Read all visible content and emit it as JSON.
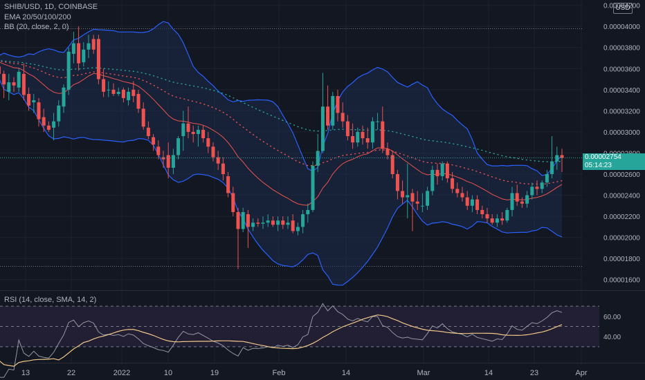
{
  "header": {
    "symbol_line": "SHIB/USD, 1D, COINBASE",
    "ema_line": "EMA 20/50/100/200",
    "bb_line": "BB (20, close, 2, 0)",
    "currency_badge": "USD"
  },
  "last_price": {
    "value": "0.00002754",
    "countdown": "05:14:23"
  },
  "rsi": {
    "label": "RSI (14, close, SMA, 14, 2)",
    "axis_labels": [
      "60.00",
      "40.00"
    ],
    "levels": [
      70,
      50,
      30
    ]
  },
  "colors": {
    "background": "#131722",
    "up": "#26a69a",
    "down": "#ef5350",
    "bb_band": "#2962ff",
    "bb_fill": "#1c2a48",
    "ema_fast": "#ef5350",
    "ema_slow": "#26a69a",
    "rsi_line": "#9598a1",
    "rsi_sma": "#f0c987",
    "rsi_zone": "#221f35"
  },
  "chart_data": {
    "type": "candlestick",
    "title": "SHIB/USD, 1D, COINBASE",
    "price_axis_labels": [
      "0.00004200",
      "0.00004000",
      "0.00003800",
      "0.00003600",
      "0.00003400",
      "0.00003200",
      "0.00003000",
      "0.00002800",
      "0.00002600",
      "0.00002400",
      "0.00002200",
      "0.00002000",
      "0.00001800",
      "0.00001600"
    ],
    "price_axis_values": [
      4.2e-05,
      4e-05,
      3.8e-05,
      3.6e-05,
      3.4e-05,
      3.2e-05,
      3e-05,
      2.8e-05,
      2.6e-05,
      2.4e-05,
      2.2e-05,
      2e-05,
      1.8e-05,
      1.6e-05
    ],
    "time_axis_labels": [
      "13",
      "22",
      "2022",
      "10",
      "19",
      "Feb",
      "14",
      "Mar",
      "14",
      "23",
      "Apr"
    ],
    "ylim": [
      1.5e-05,
      4.25e-05
    ],
    "candles": [
      [
        3.63e-05,
        3.7e-05,
        3.6e-05,
        3.68e-05
      ],
      [
        3.65e-05,
        3.7e-05,
        3.55e-05,
        3.62e-05
      ],
      [
        3.62e-05,
        3.64e-05,
        3.52e-05,
        3.55e-05
      ],
      [
        3.55e-05,
        3.58e-05,
        3.32e-05,
        3.45e-05
      ],
      [
        3.38e-05,
        3.55e-05,
        3.3e-05,
        3.47e-05
      ],
      [
        3.47e-05,
        3.52e-05,
        3.38e-05,
        3.44e-05
      ],
      [
        3.42e-05,
        3.6e-05,
        3.38e-05,
        3.57e-05
      ],
      [
        3.55e-05,
        3.65e-05,
        3.3e-05,
        3.35e-05
      ],
      [
        3.36e-05,
        3.42e-05,
        3.2e-05,
        3.25e-05
      ],
      [
        3.28e-05,
        3.36e-05,
        3.18e-05,
        3.3e-05
      ],
      [
        3.28e-05,
        3.32e-05,
        3.05e-05,
        3.12e-05
      ],
      [
        3.14e-05,
        3.22e-05,
        3e-05,
        3.06e-05
      ],
      [
        3.06e-05,
        3.1e-05,
        3e-05,
        3.02e-05
      ],
      [
        3.04e-05,
        3.18e-05,
        2.92e-05,
        3.1e-05
      ],
      [
        3.1e-05,
        3.3e-05,
        3.05e-05,
        3.25e-05
      ],
      [
        3.24e-05,
        3.45e-05,
        3.18e-05,
        3.42e-05
      ],
      [
        3.4e-05,
        3.8e-05,
        3.35e-05,
        3.76e-05
      ],
      [
        3.74e-05,
        3.95e-05,
        3.65e-05,
        3.84e-05
      ],
      [
        3.84e-05,
        4e-05,
        3.58e-05,
        3.65e-05
      ],
      [
        3.66e-05,
        3.85e-05,
        3.62e-05,
        3.78e-05
      ],
      [
        3.78e-05,
        3.92e-05,
        3.7e-05,
        3.84e-05
      ],
      [
        3.88e-05,
        3.92e-05,
        3.74e-05,
        3.78e-05
      ],
      [
        3.88e-05,
        3.92e-05,
        3.45e-05,
        3.5e-05
      ],
      [
        3.5e-05,
        3.6e-05,
        3.33e-05,
        3.38e-05
      ],
      [
        3.4e-05,
        3.48e-05,
        3.33e-05,
        3.4e-05
      ],
      [
        3.4e-05,
        3.46e-05,
        3.34e-05,
        3.36e-05
      ],
      [
        3.36e-05,
        3.42e-05,
        3.34e-05,
        3.38e-05
      ],
      [
        3.4e-05,
        3.42e-05,
        3.28e-05,
        3.32e-05
      ],
      [
        3.3e-05,
        3.42e-05,
        3.25e-05,
        3.38e-05
      ],
      [
        3.4e-05,
        3.48e-05,
        3.28e-05,
        3.34e-05
      ],
      [
        3.36e-05,
        3.4e-05,
        3.18e-05,
        3.22e-05
      ],
      [
        3.22e-05,
        3.28e-05,
        3.02e-05,
        3.05e-05
      ],
      [
        3.04e-05,
        3.1e-05,
        2.93e-05,
        2.96e-05
      ],
      [
        2.95e-05,
        2.98e-05,
        2.82e-05,
        2.88e-05
      ],
      [
        2.86e-05,
        2.92e-05,
        2.74e-05,
        2.78e-05
      ],
      [
        2.76e-05,
        2.82e-05,
        2.66e-05,
        2.74e-05
      ],
      [
        2.78e-05,
        2.9e-05,
        2.56e-05,
        2.66e-05
      ],
      [
        2.66e-05,
        2.84e-05,
        2.6e-05,
        2.78e-05
      ],
      [
        2.78e-05,
        2.96e-05,
        2.74e-05,
        2.94e-05
      ],
      [
        2.96e-05,
        3.2e-05,
        2.82e-05,
        3.08e-05
      ],
      [
        3.08e-05,
        3.24e-05,
        2.94e-05,
        3e-05
      ],
      [
        3e-05,
        3.06e-05,
        2.9e-05,
        2.98e-05
      ],
      [
        2.98e-05,
        3.06e-05,
        2.86e-05,
        3.02e-05
      ],
      [
        3.02e-05,
        3.06e-05,
        2.9e-05,
        2.94e-05
      ],
      [
        2.94e-05,
        3e-05,
        2.8e-05,
        2.86e-05
      ],
      [
        2.86e-05,
        2.9e-05,
        2.72e-05,
        2.76e-05
      ],
      [
        2.76e-05,
        2.82e-05,
        2.64e-05,
        2.7e-05
      ],
      [
        2.7e-05,
        2.76e-05,
        2.54e-05,
        2.6e-05
      ],
      [
        2.58e-05,
        2.62e-05,
        2.38e-05,
        2.42e-05
      ],
      [
        2.42e-05,
        2.48e-05,
        2.2e-05,
        2.24e-05
      ],
      [
        2.24e-05,
        2.28e-05,
        1.7e-05,
        2.08e-05
      ],
      [
        2.08e-05,
        2.28e-05,
        2.05e-05,
        2.24e-05
      ],
      [
        2.22e-05,
        2.26e-05,
        1.9e-05,
        2.1e-05
      ],
      [
        2.1e-05,
        2.18e-05,
        2.06e-05,
        2.14e-05
      ],
      [
        2.14e-05,
        2.18e-05,
        2.1e-05,
        2.13e-05
      ],
      [
        2.13e-05,
        2.2e-05,
        2.08e-05,
        2.14e-05
      ],
      [
        2.14e-05,
        2.22e-05,
        2.1e-05,
        2.16e-05
      ],
      [
        2.16e-05,
        2.2e-05,
        2.1e-05,
        2.12e-05
      ],
      [
        2.12e-05,
        2.2e-05,
        2.06e-05,
        2.16e-05
      ],
      [
        2.16e-05,
        2.2e-05,
        2.08e-05,
        2.12e-05
      ],
      [
        2.12e-05,
        2.2e-05,
        2.08e-05,
        2.14e-05
      ],
      [
        2.16e-05,
        2.22e-05,
        2.04e-05,
        2.06e-05
      ],
      [
        2.06e-05,
        2.14e-05,
        2.02e-05,
        2.1e-05
      ],
      [
        2.1e-05,
        2.26e-05,
        2.04e-05,
        2.22e-05
      ],
      [
        2.22e-05,
        2.32e-05,
        2.14e-05,
        2.26e-05
      ],
      [
        2.26e-05,
        2.72e-05,
        2.24e-05,
        2.68e-05
      ],
      [
        2.68e-05,
        2.98e-05,
        2.62e-05,
        2.82e-05
      ],
      [
        2.82e-05,
        3.56e-05,
        2.8e-05,
        3.24e-05
      ],
      [
        3.24e-05,
        3.44e-05,
        3.02e-05,
        3.06e-05
      ],
      [
        3.06e-05,
        3.38e-05,
        3.02e-05,
        3.34e-05
      ],
      [
        3.34e-05,
        3.4e-05,
        3.1e-05,
        3.18e-05
      ],
      [
        3.18e-05,
        3.28e-05,
        3.04e-05,
        3.1e-05
      ],
      [
        3.1e-05,
        3.16e-05,
        2.92e-05,
        2.96e-05
      ],
      [
        2.96e-05,
        3.08e-05,
        2.84e-05,
        2.9e-05
      ],
      [
        2.9e-05,
        3.04e-05,
        2.86e-05,
        3e-05
      ],
      [
        3e-05,
        3.06e-05,
        2.88e-05,
        2.94e-05
      ],
      [
        2.94e-05,
        3.04e-05,
        2.84e-05,
        2.9e-05
      ],
      [
        2.9e-05,
        3.14e-05,
        2.84e-05,
        3.1e-05
      ],
      [
        3.1e-05,
        3.18e-05,
        3.02e-05,
        3.1e-05
      ],
      [
        3.1e-05,
        3.24e-05,
        2.8e-05,
        2.84e-05
      ],
      [
        2.84e-05,
        2.9e-05,
        2.74e-05,
        2.78e-05
      ],
      [
        2.78e-05,
        2.82e-05,
        2.56e-05,
        2.6e-05
      ],
      [
        2.6e-05,
        2.64e-05,
        2.36e-05,
        2.44e-05
      ],
      [
        2.44e-05,
        2.54e-05,
        2.32e-05,
        2.38e-05
      ],
      [
        2.38e-05,
        2.7e-05,
        2.18e-05,
        2.4e-05
      ],
      [
        2.42e-05,
        2.46e-05,
        2.06e-05,
        2.34e-05
      ],
      [
        2.34e-05,
        2.44e-05,
        2.26e-05,
        2.32e-05
      ],
      [
        2.3e-05,
        2.42e-05,
        2.24e-05,
        2.3e-05
      ],
      [
        2.3e-05,
        2.48e-05,
        2.26e-05,
        2.44e-05
      ],
      [
        2.44e-05,
        2.68e-05,
        2.4e-05,
        2.64e-05
      ],
      [
        2.64e-05,
        2.7e-05,
        2.5e-05,
        2.58e-05
      ],
      [
        2.58e-05,
        2.72e-05,
        2.54e-05,
        2.7e-05
      ],
      [
        2.7e-05,
        2.72e-05,
        2.52e-05,
        2.56e-05
      ],
      [
        2.56e-05,
        2.62e-05,
        2.42e-05,
        2.46e-05
      ],
      [
        2.46e-05,
        2.52e-05,
        2.38e-05,
        2.42e-05
      ],
      [
        2.42e-05,
        2.48e-05,
        2.34e-05,
        2.38e-05
      ],
      [
        2.38e-05,
        2.44e-05,
        2.26e-05,
        2.3e-05
      ],
      [
        2.3e-05,
        2.4e-05,
        2.24e-05,
        2.36e-05
      ],
      [
        2.36e-05,
        2.4e-05,
        2.22e-05,
        2.26e-05
      ],
      [
        2.26e-05,
        2.3e-05,
        2.18e-05,
        2.22e-05
      ],
      [
        2.22e-05,
        2.28e-05,
        2.14e-05,
        2.18e-05
      ],
      [
        2.18e-05,
        2.22e-05,
        2.12e-05,
        2.14e-05
      ],
      [
        2.14e-05,
        2.22e-05,
        2.1e-05,
        2.18e-05
      ],
      [
        2.18e-05,
        2.24e-05,
        2.12e-05,
        2.16e-05
      ],
      [
        2.16e-05,
        2.28e-05,
        2.14e-05,
        2.26e-05
      ],
      [
        2.26e-05,
        2.48e-05,
        2.2e-05,
        2.42e-05
      ],
      [
        2.42e-05,
        2.5e-05,
        2.3e-05,
        2.34e-05
      ],
      [
        2.34e-05,
        2.38e-05,
        2.28e-05,
        2.32e-05
      ],
      [
        2.32e-05,
        2.44e-05,
        2.28e-05,
        2.4e-05
      ],
      [
        2.4e-05,
        2.52e-05,
        2.36e-05,
        2.48e-05
      ],
      [
        2.48e-05,
        2.54e-05,
        2.4e-05,
        2.46e-05
      ],
      [
        2.46e-05,
        2.54e-05,
        2.42e-05,
        2.52e-05
      ],
      [
        2.52e-05,
        2.64e-05,
        2.48e-05,
        2.6e-05
      ],
      [
        2.6e-05,
        2.96e-05,
        2.56e-05,
        2.72e-05
      ],
      [
        2.72e-05,
        2.86e-05,
        2.64e-05,
        2.78e-05
      ],
      [
        2.78e-05,
        2.84e-05,
        2.62e-05,
        2.754e-05
      ]
    ]
  }
}
